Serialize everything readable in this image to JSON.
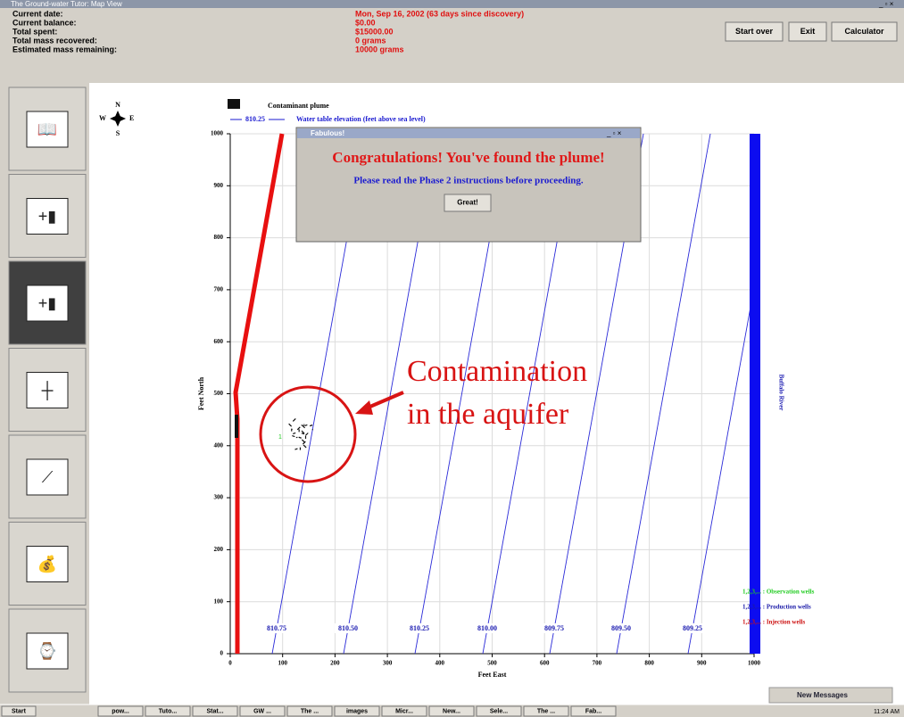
{
  "window": {
    "title": "The Ground-water Tutor: Map View"
  },
  "status": {
    "labels": [
      "Current date:",
      "Current balance:",
      "Total spent:",
      "Total mass recovered:",
      "Estimated mass remaining:"
    ],
    "values": [
      "Mon, Sep 16, 2002 (63 days since discovery)",
      "$0.00",
      "$15000.00",
      "0 grams",
      "10000 grams"
    ]
  },
  "buttons": [
    "Start over",
    "Exit",
    "Calculator"
  ],
  "compass": {
    "n": "N",
    "s": "S",
    "w": "W",
    "e": "E"
  },
  "legend": {
    "plume": "Contaminant plume",
    "contour_sample": "810.25",
    "contour": "Water table elevation (feet above sea level)"
  },
  "map": {
    "x_label": "Feet East",
    "y_label": "Feet North",
    "xlim": [
      0,
      1000
    ],
    "ylim": [
      0,
      1000
    ],
    "xticks": [
      0,
      100,
      200,
      300,
      400,
      500,
      600,
      700,
      800,
      900,
      1000
    ],
    "yticks": [
      0,
      100,
      200,
      300,
      400,
      500,
      600,
      700,
      800,
      900,
      1000
    ],
    "grid": true,
    "contour_labels": [
      "810.75",
      "810.50",
      "810.25",
      "810.00",
      "809.75",
      "809.50",
      "809.25"
    ],
    "river": "Buffalo River",
    "wells": [
      {
        "label": "1,2,3,... : Observation wells",
        "color": "#22cc22"
      },
      {
        "label": "1,2,3,... : Production wells",
        "color": "#1a1aa8"
      },
      {
        "label": "1,2,3,... : Injection wells",
        "color": "#cc1111"
      }
    ]
  },
  "dialog": {
    "title": "Fabulous!",
    "heading": "Congratulations!  You've found the plume!",
    "message": "Please read the Phase 2 instructions before proceeding.",
    "button": "Great!"
  },
  "annotation": {
    "lines": [
      "Contamination",
      "in the aquifer"
    ]
  },
  "notification": "New Messages",
  "taskbar": {
    "start": "Start",
    "items": [
      "pow...",
      "Tuto...",
      "Stat...",
      "GW ...",
      "The ...",
      "images",
      "Micr...",
      "New...",
      "Sele...",
      "The ...",
      "Fab..."
    ],
    "clock": "11:24 AM"
  }
}
